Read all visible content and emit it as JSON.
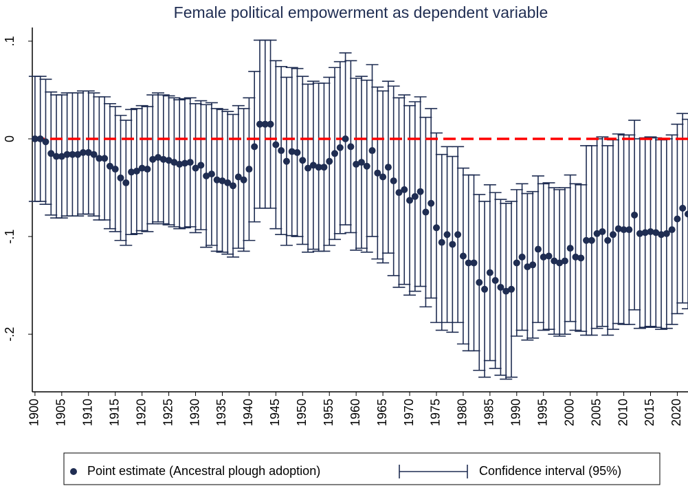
{
  "chart_data": {
    "type": "scatter",
    "title": "Female political empowerment as dependent variable",
    "x": [
      1900,
      1901,
      1902,
      1903,
      1904,
      1905,
      1906,
      1907,
      1908,
      1909,
      1910,
      1911,
      1912,
      1913,
      1914,
      1915,
      1916,
      1917,
      1918,
      1919,
      1920,
      1921,
      1922,
      1923,
      1924,
      1925,
      1926,
      1927,
      1928,
      1929,
      1930,
      1931,
      1932,
      1933,
      1934,
      1935,
      1936,
      1937,
      1938,
      1939,
      1940,
      1941,
      1942,
      1943,
      1944,
      1945,
      1946,
      1947,
      1948,
      1949,
      1950,
      1951,
      1952,
      1953,
      1954,
      1955,
      1956,
      1957,
      1958,
      1959,
      1960,
      1961,
      1962,
      1963,
      1964,
      1965,
      1966,
      1967,
      1968,
      1969,
      1970,
      1971,
      1972,
      1973,
      1974,
      1975,
      1976,
      1977,
      1978,
      1979,
      1980,
      1981,
      1982,
      1983,
      1984,
      1985,
      1986,
      1987,
      1988,
      1989,
      1990,
      1991,
      1992,
      1993,
      1994,
      1995,
      1996,
      1997,
      1998,
      1999,
      2000,
      2001,
      2002,
      2003,
      2004,
      2005,
      2006,
      2007,
      2008,
      2009,
      2010,
      2011,
      2012,
      2013,
      2014,
      2015,
      2016,
      2017,
      2018,
      2019,
      2020,
      2021,
      2022
    ],
    "series": [
      {
        "name": "Point estimate (Ancestral plough adoption)",
        "color": "#1f2d52",
        "values": [
          0,
          0,
          -0.003,
          -0.015,
          -0.018,
          -0.018,
          -0.016,
          -0.016,
          -0.016,
          -0.014,
          -0.014,
          -0.016,
          -0.02,
          -0.02,
          -0.028,
          -0.031,
          -0.04,
          -0.045,
          -0.034,
          -0.033,
          -0.03,
          -0.031,
          -0.021,
          -0.019,
          -0.021,
          -0.022,
          -0.024,
          -0.026,
          -0.025,
          -0.024,
          -0.03,
          -0.027,
          -0.038,
          -0.036,
          -0.042,
          -0.043,
          -0.045,
          -0.048,
          -0.039,
          -0.042,
          -0.031,
          -0.008,
          0.015,
          0.015,
          0.015,
          -0.006,
          -0.012,
          -0.023,
          -0.013,
          -0.014,
          -0.022,
          -0.03,
          -0.027,
          -0.029,
          -0.029,
          -0.023,
          -0.015,
          -0.009,
          0,
          -0.008,
          -0.026,
          -0.024,
          -0.028,
          -0.012,
          -0.035,
          -0.039,
          -0.029,
          -0.043,
          -0.055,
          -0.052,
          -0.063,
          -0.059,
          -0.054,
          -0.075,
          -0.066,
          -0.091,
          -0.106,
          -0.098,
          -0.108,
          -0.098,
          -0.12,
          -0.127,
          -0.127,
          -0.147,
          -0.154,
          -0.137,
          -0.145,
          -0.152,
          -0.156,
          -0.154,
          -0.127,
          -0.121,
          -0.131,
          -0.129,
          -0.113,
          -0.121,
          -0.12,
          -0.125,
          -0.127,
          -0.125,
          -0.112,
          -0.121,
          -0.122,
          -0.104,
          -0.104,
          -0.097,
          -0.095,
          -0.104,
          -0.098,
          -0.092,
          -0.093,
          -0.093,
          -0.078,
          -0.097,
          -0.096,
          -0.095,
          -0.096,
          -0.098,
          -0.097,
          -0.093,
          -0.082,
          -0.071,
          -0.077
        ]
      },
      {
        "name": "Confidence interval (95%)",
        "color": "#1f2d52",
        "lower": [
          -0.064,
          -0.064,
          -0.067,
          -0.078,
          -0.081,
          -0.081,
          -0.079,
          -0.079,
          -0.079,
          -0.077,
          -0.077,
          -0.079,
          -0.083,
          -0.083,
          -0.092,
          -0.095,
          -0.104,
          -0.109,
          -0.098,
          -0.097,
          -0.094,
          -0.095,
          -0.087,
          -0.085,
          -0.087,
          -0.088,
          -0.09,
          -0.092,
          -0.091,
          -0.09,
          -0.096,
          -0.093,
          -0.111,
          -0.109,
          -0.115,
          -0.116,
          -0.118,
          -0.121,
          -0.112,
          -0.115,
          -0.104,
          -0.085,
          -0.071,
          -0.071,
          -0.071,
          -0.092,
          -0.098,
          -0.109,
          -0.099,
          -0.1,
          -0.108,
          -0.116,
          -0.113,
          -0.115,
          -0.115,
          -0.109,
          -0.103,
          -0.097,
          -0.088,
          -0.096,
          -0.114,
          -0.112,
          -0.116,
          -0.1,
          -0.123,
          -0.127,
          -0.117,
          -0.14,
          -0.152,
          -0.149,
          -0.16,
          -0.156,
          -0.151,
          -0.172,
          -0.163,
          -0.188,
          -0.196,
          -0.188,
          -0.198,
          -0.188,
          -0.21,
          -0.217,
          -0.217,
          -0.237,
          -0.244,
          -0.227,
          -0.235,
          -0.242,
          -0.246,
          -0.244,
          -0.202,
          -0.196,
          -0.206,
          -0.204,
          -0.188,
          -0.196,
          -0.195,
          -0.2,
          -0.202,
          -0.2,
          -0.187,
          -0.196,
          -0.197,
          -0.201,
          -0.201,
          -0.194,
          -0.192,
          -0.201,
          -0.195,
          -0.189,
          -0.19,
          -0.19,
          -0.175,
          -0.194,
          -0.193,
          -0.192,
          -0.193,
          -0.195,
          -0.194,
          -0.19,
          -0.179,
          -0.168,
          -0.174
        ],
        "upper": [
          0.064,
          0.064,
          0.061,
          0.048,
          0.045,
          0.045,
          0.047,
          0.047,
          0.047,
          0.049,
          0.049,
          0.047,
          0.043,
          0.043,
          0.036,
          0.033,
          0.024,
          0.019,
          0.03,
          0.031,
          0.034,
          0.033,
          0.045,
          0.047,
          0.045,
          0.044,
          0.042,
          0.04,
          0.041,
          0.042,
          0.036,
          0.039,
          0.035,
          0.037,
          0.031,
          0.03,
          0.028,
          0.025,
          0.034,
          0.031,
          0.042,
          0.069,
          0.101,
          0.101,
          0.101,
          0.08,
          0.074,
          0.063,
          0.073,
          0.072,
          0.064,
          0.056,
          0.059,
          0.057,
          0.057,
          0.063,
          0.073,
          0.079,
          0.088,
          0.08,
          0.062,
          0.064,
          0.06,
          0.076,
          0.053,
          0.049,
          0.059,
          0.054,
          0.042,
          0.045,
          0.034,
          0.038,
          0.043,
          0.022,
          0.031,
          0.006,
          -0.016,
          -0.008,
          -0.018,
          -0.008,
          -0.03,
          -0.037,
          -0.037,
          -0.057,
          -0.064,
          -0.047,
          -0.055,
          -0.062,
          -0.066,
          -0.064,
          -0.052,
          -0.046,
          -0.056,
          -0.054,
          -0.038,
          -0.046,
          -0.045,
          -0.05,
          -0.052,
          -0.05,
          -0.037,
          -0.046,
          -0.047,
          -0.007,
          -0.007,
          0,
          0.002,
          -0.007,
          -0.001,
          0.005,
          0.004,
          0.004,
          0.019,
          0,
          0.001,
          0.002,
          0.001,
          -0.001,
          0,
          0.004,
          0.015,
          0.026,
          0.02
        ]
      }
    ],
    "reference_line": {
      "value": 0,
      "color": "#ff0000"
    },
    "xlim": [
      1899.5,
      2022
    ],
    "xticks": [
      1900,
      1905,
      1910,
      1915,
      1920,
      1925,
      1930,
      1935,
      1940,
      1945,
      1950,
      1955,
      1960,
      1965,
      1970,
      1975,
      1980,
      1985,
      1990,
      1995,
      2000,
      2005,
      2010,
      2015,
      2020
    ],
    "ylim": [
      -0.259,
      0.114
    ],
    "yticks": [
      {
        "value": 0.1,
        "label": ".1"
      },
      0,
      {
        "value": -0.1,
        "label": "-.1"
      },
      {
        "value": -0.2,
        "label": "-.2"
      }
    ],
    "grid": false
  }
}
